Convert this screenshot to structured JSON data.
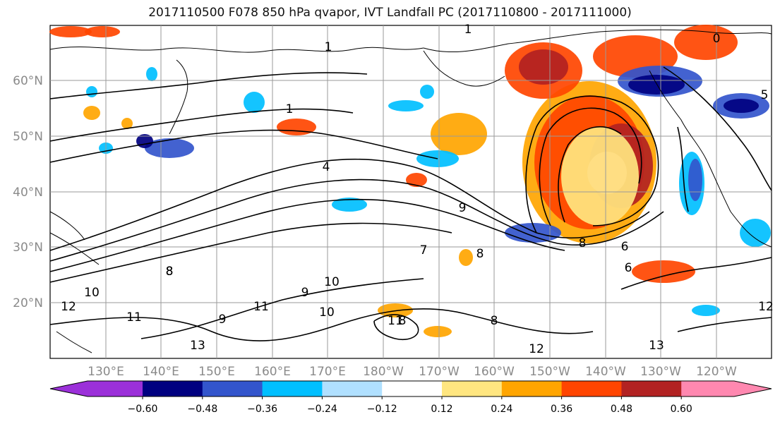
{
  "title": "2017110500 F078 850 hPa qvapor, IVT Landfall PC (2017110800 - 2017111000)",
  "lat_labels": [
    "60°N",
    "50°N",
    "40°N",
    "30°N",
    "20°N"
  ],
  "lon_labels": [
    "130°E",
    "140°E",
    "150°E",
    "160°E",
    "170°E",
    "180°W",
    "170°W",
    "160°W",
    "150°W",
    "140°W",
    "130°W",
    "120°W"
  ],
  "colorbar": {
    "colors": [
      "#9b30d9",
      "#000080",
      "#3355cc",
      "#00bfff",
      "#b0e0ff",
      "#ffffff",
      "#ffe680",
      "#ffa500",
      "#ff4500",
      "#b22222",
      "#ff88b0"
    ],
    "tick_labels": [
      "−0.60",
      "−0.48",
      "−0.36",
      "−0.24",
      "−0.12",
      "0.12",
      "0.24",
      "0.36",
      "0.48",
      "0.60"
    ]
  },
  "contour_labels": [
    "1",
    "1",
    "1",
    "4",
    "9",
    "7",
    "8",
    "8",
    "8",
    "6",
    "6",
    "8",
    "10",
    "9",
    "10",
    "11",
    "11",
    "12",
    "13",
    "11",
    "9",
    "8",
    "10",
    "12",
    "12",
    "13",
    "5",
    "8",
    "0"
  ]
}
